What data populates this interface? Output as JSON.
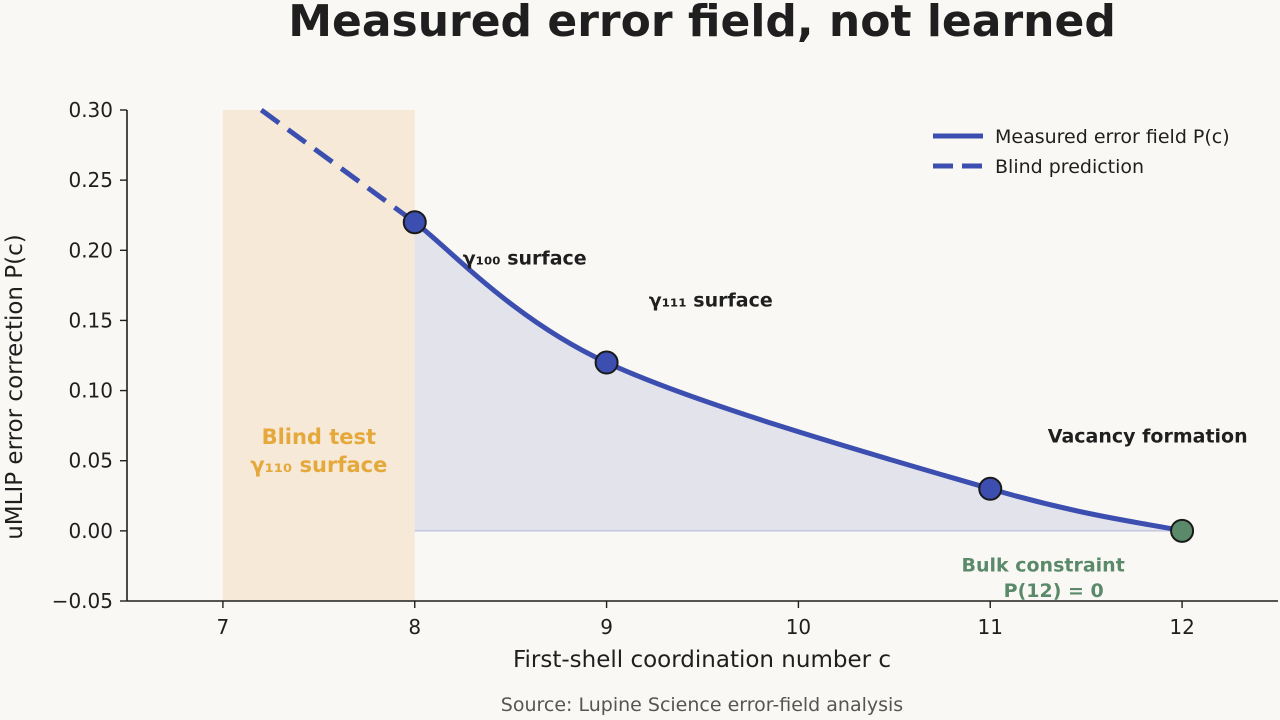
{
  "chart_data": {
    "type": "line",
    "title": "Measured error field, not learned",
    "xlabel": "First-shell coordination number  c",
    "ylabel": "uMLIP error correction  P(c)",
    "xlim": [
      6.5,
      12.5
    ],
    "ylim": [
      -0.05,
      0.3
    ],
    "x_ticks": [
      7,
      8,
      9,
      10,
      11,
      12
    ],
    "y_ticks": [
      -0.05,
      0.0,
      0.05,
      0.1,
      0.15,
      0.2,
      0.25,
      0.3
    ],
    "x_tick_labels": [
      "7",
      "8",
      "9",
      "10",
      "11",
      "12"
    ],
    "y_tick_labels": [
      "−0.05",
      "0.00",
      "0.05",
      "0.10",
      "0.15",
      "0.20",
      "0.25",
      "0.30"
    ],
    "grid": false,
    "legend_position": "top-right",
    "series": [
      {
        "name": "Measured error field P(c)",
        "style": "solid",
        "color": "#3c4fb0",
        "x": [
          8,
          9,
          11,
          12
        ],
        "y": [
          0.22,
          0.12,
          0.03,
          0.0
        ]
      },
      {
        "name": "Blind prediction",
        "style": "dashed",
        "color": "#3c4fb0",
        "x": [
          7.2,
          8
        ],
        "y": [
          0.3,
          0.22
        ]
      }
    ],
    "points": [
      {
        "x": 8,
        "y": 0.22,
        "color": "#3c4fb0"
      },
      {
        "x": 9,
        "y": 0.12,
        "color": "#3c4fb0"
      },
      {
        "x": 11,
        "y": 0.03,
        "color": "#3c4fb0"
      },
      {
        "x": 12,
        "y": 0.0,
        "color": "#5a8a6a"
      }
    ],
    "shaded_region": {
      "x_range": [
        7,
        8
      ],
      "color": "#f4e6d2",
      "label_lines": [
        "Blind test",
        "γ₁₁₀ surface"
      ],
      "label_color": "#e5a83a"
    },
    "annotations": [
      {
        "text": "γ₁₀₀ surface",
        "x": 8.25,
        "y": 0.19,
        "color": "#1f1f1f"
      },
      {
        "text": "γ₁₁₁ surface",
        "x": 9.22,
        "y": 0.16,
        "color": "#1f1f1f"
      },
      {
        "text": "Vacancy formation",
        "x": 11.3,
        "y": 0.063,
        "color": "#1f1f1f"
      },
      {
        "text": "Bulk constraint",
        "x": 10.85,
        "y": -0.029,
        "color": "#5a8a6a"
      },
      {
        "text": "P(12) = 0",
        "x": 11.07,
        "y": -0.047,
        "color": "#5a8a6a"
      }
    ]
  },
  "source": "Source: Lupine Science error-field analysis"
}
